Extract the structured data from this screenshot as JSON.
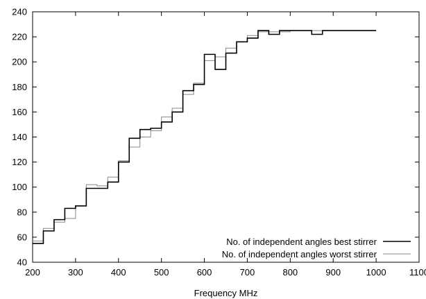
{
  "chart_data": {
    "type": "line",
    "title": "",
    "xlabel": "Frequency MHz",
    "ylabel": "",
    "xlim": [
      200,
      1100
    ],
    "ylim": [
      40,
      240
    ],
    "xticks": [
      "200",
      "300",
      "400",
      "500",
      "600",
      "700",
      "800",
      "900",
      "1000",
      "1100"
    ],
    "yticks": [
      "40",
      "60",
      "80",
      "100",
      "120",
      "140",
      "160",
      "180",
      "200",
      "220",
      "240"
    ],
    "grid": false,
    "legend_position": "bottom-right",
    "step": "post",
    "series": [
      {
        "name": "No. of independent angles best stirrer",
        "color": "#000000",
        "x": [
          200,
          225,
          250,
          275,
          300,
          325,
          350,
          375,
          400,
          425,
          450,
          475,
          500,
          525,
          550,
          575,
          600,
          625,
          650,
          675,
          700,
          725,
          750,
          775,
          800,
          825,
          850,
          875,
          900,
          925,
          950,
          975,
          1000
        ],
        "y": [
          55,
          65,
          74,
          83,
          85,
          99,
          99,
          104,
          120,
          139,
          146,
          147,
          152,
          160,
          177,
          182,
          206,
          194,
          207,
          216,
          219,
          225,
          222,
          225,
          225,
          225,
          222,
          225,
          225,
          225,
          225,
          225,
          225
        ]
      },
      {
        "name": "No. of independent angles worst stirrer",
        "color": "#888888",
        "x": [
          200,
          225,
          250,
          275,
          300,
          325,
          350,
          375,
          400,
          425,
          450,
          475,
          500,
          525,
          550,
          575,
          600,
          625,
          650,
          675,
          700,
          725,
          750,
          775,
          800,
          825,
          850,
          875,
          900,
          925,
          950,
          975,
          1000
        ],
        "y": [
          57,
          67,
          72,
          75,
          85,
          102,
          101,
          108,
          121,
          132,
          140,
          145,
          156,
          163,
          174,
          183,
          201,
          204,
          211,
          216,
          221,
          224,
          224,
          224,
          225,
          225,
          225,
          225,
          225,
          225,
          225,
          225,
          225
        ]
      }
    ]
  }
}
